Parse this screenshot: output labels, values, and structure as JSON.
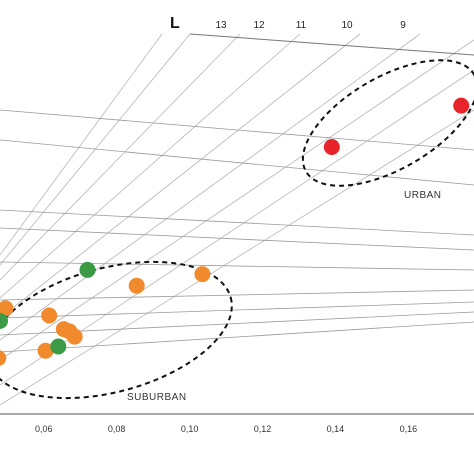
{
  "chart_data": {
    "type": "scatter",
    "title": "",
    "xlabel": "",
    "ylabel": "",
    "xlim": [
      0.048,
      0.178
    ],
    "ylim": [
      0,
      1
    ],
    "grid": false,
    "x_ticks": [
      "0,06",
      "0,08",
      "0,10",
      "0,12",
      "0,14",
      "0,16"
    ],
    "x_tick_values": [
      0.06,
      0.08,
      0.1,
      0.12,
      0.14,
      0.16
    ],
    "overlay_title": "L",
    "overlay_values": [
      "13",
      "12",
      "11",
      "10",
      "9"
    ],
    "groups": [
      {
        "label": "URBAN"
      },
      {
        "label": "SUBURBAN"
      }
    ],
    "series": [
      {
        "color": "#e8242b",
        "points": [
          {
            "x": 0.139,
            "y": 0.645
          },
          {
            "x": 0.1745,
            "y": 0.745
          }
        ]
      },
      {
        "color": "#f08a2c",
        "points": [
          {
            "x": 0.0495,
            "y": 0.255
          },
          {
            "x": 0.0615,
            "y": 0.238
          },
          {
            "x": 0.0655,
            "y": 0.205
          },
          {
            "x": 0.067,
            "y": 0.2
          },
          {
            "x": 0.0685,
            "y": 0.187
          },
          {
            "x": 0.0605,
            "y": 0.153
          },
          {
            "x": 0.0855,
            "y": 0.31
          },
          {
            "x": 0.1035,
            "y": 0.338
          },
          {
            "x": 0.0475,
            "y": 0.135
          }
        ]
      },
      {
        "color": "#3a9a45",
        "points": [
          {
            "x": 0.072,
            "y": 0.348
          },
          {
            "x": 0.048,
            "y": 0.225
          },
          {
            "x": 0.064,
            "y": 0.163
          }
        ]
      }
    ]
  }
}
